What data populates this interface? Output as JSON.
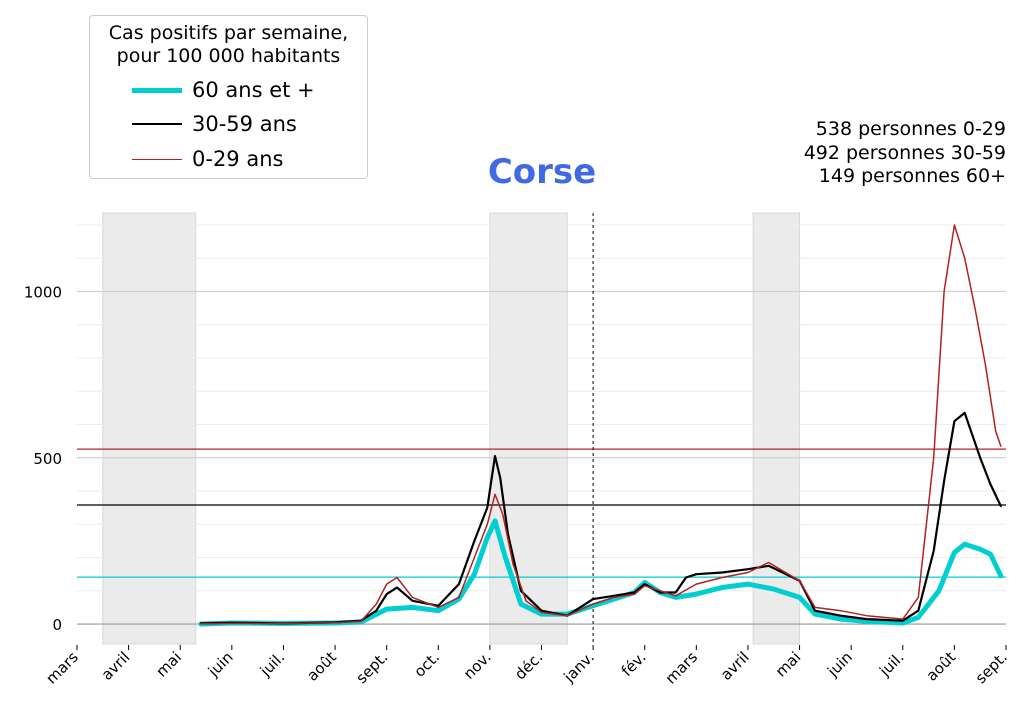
{
  "chart_data": {
    "type": "line",
    "title": "Corse",
    "legend": {
      "title_line1": "Cas positifs par semaine,",
      "title_line2": "pour 100 000 habitants",
      "placement": "top-left"
    },
    "annotations": [
      "538 personnes 0-29",
      "492 personnes 30-59",
      "149 personnes 60+"
    ],
    "x_ticks": [
      "mars",
      "avril",
      "mai",
      "juin",
      "juil.",
      "août",
      "sept.",
      "oct.",
      "nov.",
      "déc.",
      "janv.",
      "fév.",
      "mars",
      "avril",
      "mai",
      "juin",
      "juil.",
      "août",
      "sept."
    ],
    "x_ticks_months_index": [
      0,
      1,
      2,
      3,
      4,
      5,
      6,
      7,
      8,
      9,
      10,
      11,
      12,
      13,
      14,
      15,
      16,
      17,
      18
    ],
    "x_unit": "months since 1 March 2020",
    "y_ticks": [
      0,
      500,
      1000
    ],
    "ylim": [
      -60,
      1260
    ],
    "grid": true,
    "shaded_periods": [
      [
        0.5,
        2.3
      ],
      [
        8.0,
        9.5
      ],
      [
        13.1,
        14.0
      ]
    ],
    "vertical_marker": 10.0,
    "series": [
      {
        "name": "60 ans et +",
        "color": "#00ced1",
        "current_level": 141,
        "points": [
          [
            2.4,
            0
          ],
          [
            3,
            3
          ],
          [
            4,
            2
          ],
          [
            5,
            3
          ],
          [
            5.5,
            6
          ],
          [
            6,
            45
          ],
          [
            6.5,
            50
          ],
          [
            7,
            40
          ],
          [
            7.4,
            75
          ],
          [
            7.7,
            150
          ],
          [
            7.95,
            260
          ],
          [
            8.1,
            310
          ],
          [
            8.3,
            200
          ],
          [
            8.6,
            60
          ],
          [
            9,
            30
          ],
          [
            9.5,
            30
          ],
          [
            10,
            55
          ],
          [
            10.4,
            75
          ],
          [
            10.8,
            95
          ],
          [
            11,
            125
          ],
          [
            11.3,
            95
          ],
          [
            11.6,
            80
          ],
          [
            12,
            90
          ],
          [
            12.5,
            110
          ],
          [
            13,
            120
          ],
          [
            13.5,
            105
          ],
          [
            14,
            80
          ],
          [
            14.3,
            30
          ],
          [
            14.8,
            15
          ],
          [
            15.3,
            8
          ],
          [
            16,
            3
          ],
          [
            16.3,
            20
          ],
          [
            16.7,
            100
          ],
          [
            17,
            215
          ],
          [
            17.2,
            240
          ],
          [
            17.5,
            225
          ],
          [
            17.7,
            210
          ],
          [
            17.9,
            145
          ]
        ]
      },
      {
        "name": "30-59 ans",
        "color": "#000000",
        "current_level": 358,
        "points": [
          [
            2.4,
            2
          ],
          [
            3,
            4
          ],
          [
            4,
            2
          ],
          [
            5,
            5
          ],
          [
            5.5,
            10
          ],
          [
            5.8,
            40
          ],
          [
            6,
            90
          ],
          [
            6.2,
            110
          ],
          [
            6.5,
            70
          ],
          [
            7,
            55
          ],
          [
            7.4,
            120
          ],
          [
            7.7,
            250
          ],
          [
            7.95,
            350
          ],
          [
            8.1,
            505
          ],
          [
            8.2,
            440
          ],
          [
            8.35,
            270
          ],
          [
            8.6,
            100
          ],
          [
            9,
            40
          ],
          [
            9.5,
            25
          ],
          [
            10,
            75
          ],
          [
            10.4,
            85
          ],
          [
            10.8,
            95
          ],
          [
            11,
            120
          ],
          [
            11.3,
            95
          ],
          [
            11.6,
            95
          ],
          [
            11.8,
            140
          ],
          [
            12,
            150
          ],
          [
            12.5,
            155
          ],
          [
            13,
            165
          ],
          [
            13.4,
            175
          ],
          [
            14,
            130
          ],
          [
            14.3,
            40
          ],
          [
            14.8,
            25
          ],
          [
            15.3,
            15
          ],
          [
            16,
            10
          ],
          [
            16.3,
            40
          ],
          [
            16.6,
            220
          ],
          [
            16.8,
            430
          ],
          [
            17,
            610
          ],
          [
            17.2,
            635
          ],
          [
            17.5,
            500
          ],
          [
            17.7,
            420
          ],
          [
            17.9,
            355
          ]
        ]
      },
      {
        "name": "0-29 ans",
        "color": "#b22222",
        "current_level": 526,
        "points": [
          [
            2.4,
            1
          ],
          [
            3,
            2
          ],
          [
            4,
            2
          ],
          [
            5,
            4
          ],
          [
            5.5,
            8
          ],
          [
            5.8,
            60
          ],
          [
            6,
            120
          ],
          [
            6.2,
            140
          ],
          [
            6.5,
            80
          ],
          [
            7,
            50
          ],
          [
            7.4,
            80
          ],
          [
            7.7,
            200
          ],
          [
            7.95,
            300
          ],
          [
            8.1,
            390
          ],
          [
            8.25,
            330
          ],
          [
            8.45,
            180
          ],
          [
            8.7,
            70
          ],
          [
            9,
            35
          ],
          [
            9.5,
            25
          ],
          [
            10,
            60
          ],
          [
            10.4,
            80
          ],
          [
            10.8,
            90
          ],
          [
            11,
            115
          ],
          [
            11.3,
            100
          ],
          [
            11.6,
            85
          ],
          [
            12,
            120
          ],
          [
            12.5,
            140
          ],
          [
            13,
            155
          ],
          [
            13.4,
            185
          ],
          [
            14,
            130
          ],
          [
            14.3,
            50
          ],
          [
            14.8,
            40
          ],
          [
            15.3,
            25
          ],
          [
            16,
            15
          ],
          [
            16.3,
            80
          ],
          [
            16.6,
            500
          ],
          [
            16.8,
            1000
          ],
          [
            17,
            1200
          ],
          [
            17.2,
            1100
          ],
          [
            17.4,
            950
          ],
          [
            17.6,
            780
          ],
          [
            17.8,
            580
          ],
          [
            17.9,
            535
          ]
        ]
      }
    ]
  }
}
